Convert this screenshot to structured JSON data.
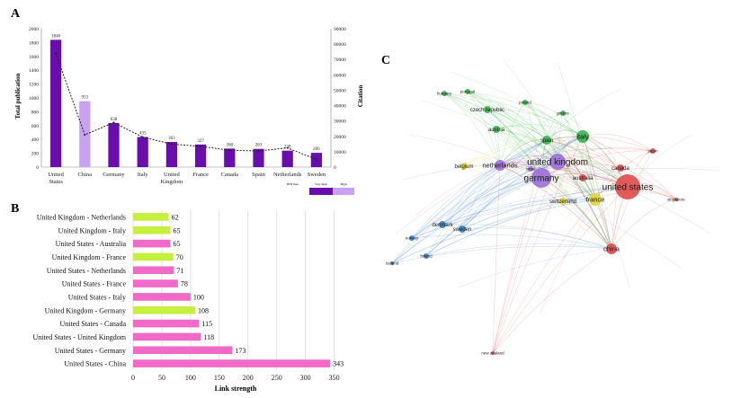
{
  "panels": {
    "a": {
      "letter": "A"
    },
    "b": {
      "letter": "B"
    },
    "c": {
      "letter": "C"
    }
  },
  "chart_data": [
    {
      "panel": "A",
      "type": "bar",
      "categories": [
        "United States",
        "China",
        "Germany",
        "Italy",
        "United Kingdom",
        "France",
        "Canada",
        "Spain",
        "Netherlands",
        "Sweden"
      ],
      "values": [
        1840,
        953,
        638,
        435,
        363,
        327,
        268,
        263,
        238,
        206
      ],
      "value_labels": [
        "1840",
        "953",
        "638",
        "435",
        "363",
        "327",
        "268",
        "263",
        "238",
        "206"
      ],
      "bar_groups": [
        "very-high",
        "high",
        "very-high",
        "very-high",
        "very-high",
        "very-high",
        "very-high",
        "very-high",
        "very-high",
        "very-high"
      ],
      "citation_line": [
        74000,
        21000,
        29000,
        19500,
        15000,
        13500,
        11000,
        10500,
        12500,
        5000
      ],
      "ylabel": "Total publication",
      "y2label": "Citation",
      "ylim": [
        0,
        2000
      ],
      "y2lim": [
        0,
        90000
      ],
      "yticks": [
        0,
        200,
        400,
        600,
        800,
        1000,
        1200,
        1400,
        1600,
        1800,
        2000
      ],
      "y2ticks": [
        0,
        10000,
        20000,
        30000,
        40000,
        50000,
        60000,
        70000,
        80000,
        90000
      ],
      "legend": {
        "title": "HDI mex",
        "entries": [
          "Very high",
          "High"
        ]
      },
      "colors": {
        "very_high": "#6a0dad",
        "high": "#c8a2f0",
        "line": "#222222"
      }
    },
    {
      "panel": "B",
      "type": "bar",
      "orientation": "horizontal",
      "categories": [
        "United Kingdom - Netherlands",
        "United Kingdom - Italy",
        "United States - Australia",
        "United Kingdom - France",
        "United States - Netherlands",
        "United States - France",
        "United States - Italy",
        "United Kingdom - Germany",
        "United States - Canada",
        "United States - United Kingdom",
        "United States - Germany",
        "United States - China"
      ],
      "values": [
        62,
        65,
        65,
        70,
        71,
        78,
        100,
        108,
        115,
        118,
        173,
        343
      ],
      "value_labels": [
        "62",
        "65",
        "65",
        "70",
        "71",
        "78",
        "100",
        "108",
        "115",
        "118",
        "173",
        "343"
      ],
      "bar_colors": [
        "#c6ef3f",
        "#c6ef3f",
        "#f06ac8",
        "#c6ef3f",
        "#f06ac8",
        "#f06ac8",
        "#f06ac8",
        "#c6ef3f",
        "#f06ac8",
        "#f06ac8",
        "#f06ac8",
        "#f06ac8"
      ],
      "xlabel": "Link strength",
      "xlim": [
        0,
        360
      ],
      "xticks": [
        0,
        50,
        100,
        150,
        200,
        250,
        300,
        350
      ],
      "grid": true
    }
  ],
  "network": {
    "nodes": [
      {
        "label": "united states",
        "size": 14,
        "color": "#e04a4a"
      },
      {
        "label": "germany",
        "size": 11,
        "color": "#9b6ed8"
      },
      {
        "label": "united kingdom",
        "size": 9,
        "color": "#9b6ed8"
      },
      {
        "label": "netherlands",
        "size": 6,
        "color": "#9b6ed8"
      },
      {
        "label": "italy",
        "size": 7,
        "color": "#3ab54a"
      },
      {
        "label": "france",
        "size": 7,
        "color": "#e0d63a"
      },
      {
        "label": "spain",
        "size": 5,
        "color": "#3ab54a"
      },
      {
        "label": "canada",
        "size": 4,
        "color": "#e04a4a"
      },
      {
        "label": "china",
        "size": 6,
        "color": "#e04a4a"
      },
      {
        "label": "switzerland",
        "size": 4,
        "color": "#e0d63a"
      },
      {
        "label": "belgium",
        "size": 4,
        "color": "#e0d63a"
      },
      {
        "label": "czech republic",
        "size": 4,
        "color": "#3ab54a"
      },
      {
        "label": "poland",
        "size": 3,
        "color": "#3ab54a"
      },
      {
        "label": "austria",
        "size": 4,
        "color": "#3ab54a"
      },
      {
        "label": "denmark",
        "size": 4,
        "color": "#3a7fc8"
      },
      {
        "label": "sweden",
        "size": 4,
        "color": "#3a7fc8"
      },
      {
        "label": "finland",
        "size": 3,
        "color": "#3a7fc8"
      },
      {
        "label": "norway",
        "size": 3,
        "color": "#3a7fc8"
      },
      {
        "label": "australia",
        "size": 4,
        "color": "#e04a4a"
      },
      {
        "label": "israel",
        "size": 3,
        "color": "#9b6ed8"
      },
      {
        "label": "japan",
        "size": 3,
        "color": "#e04a4a"
      },
      {
        "label": "singapore",
        "size": 2,
        "color": "#e04a4a"
      },
      {
        "label": "new zealand",
        "size": 2,
        "color": "#e04a4a"
      },
      {
        "label": "portugal",
        "size": 3,
        "color": "#3ab54a"
      },
      {
        "label": "greece",
        "size": 3,
        "color": "#3ab54a"
      },
      {
        "label": "hungary",
        "size": 3,
        "color": "#3ab54a"
      },
      {
        "label": "iceland",
        "size": 2,
        "color": "#3a7fc8"
      }
    ]
  }
}
